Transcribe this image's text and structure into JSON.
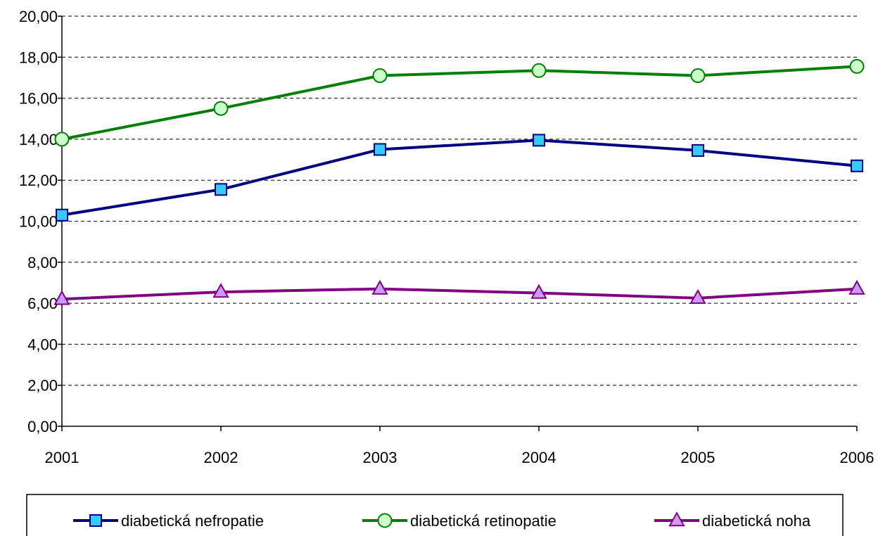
{
  "chart_data": {
    "type": "line",
    "title": "",
    "xlabel": "",
    "ylabel": "",
    "categories": [
      "2001",
      "2002",
      "2003",
      "2004",
      "2005",
      "2006"
    ],
    "ylim": [
      0,
      20
    ],
    "yticks": [
      0,
      2,
      4,
      6,
      8,
      10,
      12,
      14,
      16,
      18,
      20
    ],
    "ytick_labels": [
      "0,00",
      "2,00",
      "4,00",
      "6,00",
      "8,00",
      "10,00",
      "12,00",
      "14,00",
      "16,00",
      "18,00",
      "20,00"
    ],
    "grid": "horizontal dashed",
    "legend_position": "bottom",
    "series": [
      {
        "name": "diabetická nefropatie",
        "values": [
          10.3,
          11.55,
          13.5,
          13.95,
          13.45,
          12.7
        ],
        "line_color": "#000080",
        "marker": "square",
        "marker_fill": "#33CCFF"
      },
      {
        "name": "diabetická retinopatie",
        "values": [
          14.0,
          15.5,
          17.1,
          17.35,
          17.1,
          17.55
        ],
        "line_color": "#008000",
        "marker": "circle",
        "marker_fill": "#CCFFCC"
      },
      {
        "name": "diabetická noha",
        "values": [
          6.2,
          6.55,
          6.7,
          6.5,
          6.25,
          6.7
        ],
        "line_color": "#800080",
        "marker": "triangle",
        "marker_fill": "#CC99FF"
      }
    ]
  }
}
